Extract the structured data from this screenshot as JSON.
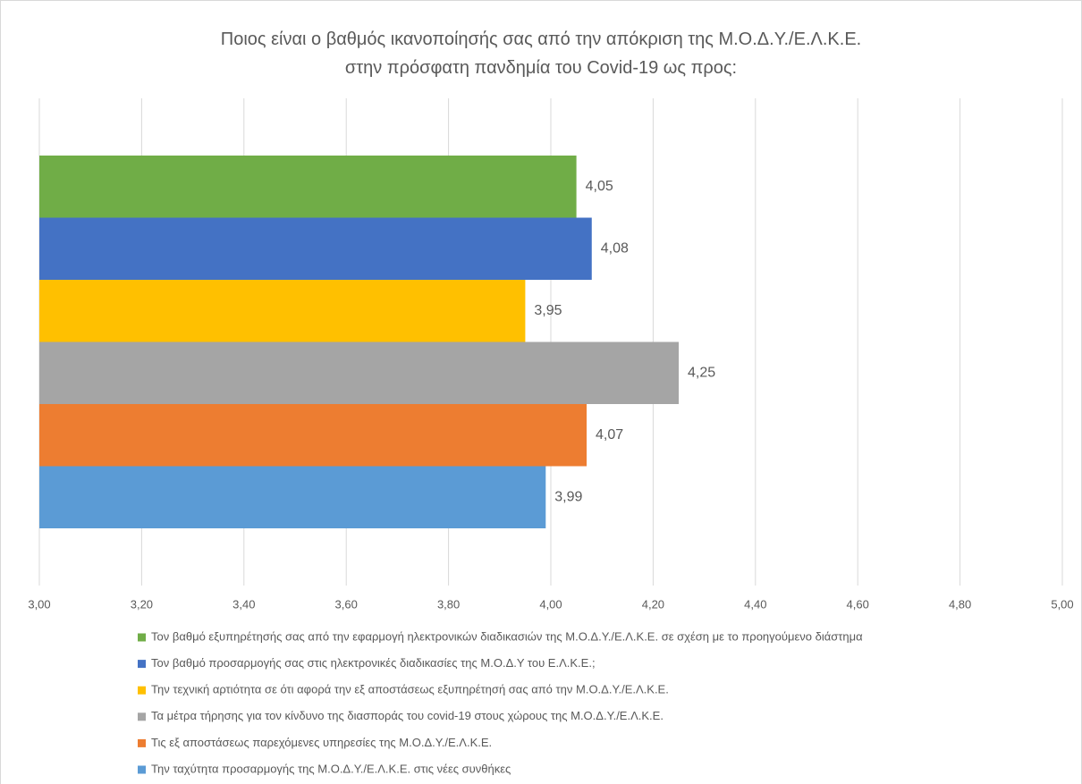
{
  "chart_data": {
    "type": "bar",
    "orientation": "horizontal",
    "title": "Ποιος είναι ο βαθμός ικανοποίησής σας από την απόκριση της Μ.Ο.Δ.Υ./Ε.Λ.Κ.Ε.  στην πρόσφατη πανδημία του Covid-19 ως προς:",
    "series": [
      {
        "name": "Τον βαθμό εξυπηρέτησής σας από την εφαρμογή ηλεκτρονικών διαδικασιών της Μ.Ο.Δ.Υ./Ε.Λ.Κ.Ε. σε σχέση με το προηγούμενο διάστημα",
        "color": "#70ad47",
        "values": [
          4.05
        ],
        "value_labels": [
          "4,05"
        ]
      },
      {
        "name": "Τον βαθμό προσαρμογής σας στις ηλεκτρονικές διαδικασίες της Μ.Ο.Δ.Υ του Ε.Λ.Κ.Ε.;",
        "color": "#4472c4",
        "values": [
          4.08
        ],
        "value_labels": [
          "4,08"
        ]
      },
      {
        "name": "Την τεχνική αρτιότητα σε ότι αφορά την εξ αποστάσεως εξυπηρέτησή σας από την Μ.Ο.Δ.Υ./Ε.Λ.Κ.Ε.",
        "color": "#ffc000",
        "values": [
          3.95
        ],
        "value_labels": [
          "3,95"
        ]
      },
      {
        "name": "Τα μέτρα τήρησης για τον κίνδυνο της διασποράς του covid-19 στους χώρους της Μ.Ο.Δ.Υ./Ε.Λ.Κ.Ε.",
        "color": "#a5a5a5",
        "values": [
          4.25
        ],
        "value_labels": [
          "4,25"
        ]
      },
      {
        "name": "Τις εξ αποστάσεως παρεχόμενες υπηρεσίες της Μ.Ο.Δ.Υ./Ε.Λ.Κ.Ε.",
        "color": "#ed7d31",
        "values": [
          4.07
        ],
        "value_labels": [
          "4,07"
        ]
      },
      {
        "name": "Την ταχύτητα προσαρμογής της Μ.Ο.Δ.Υ./Ε.Λ.Κ.Ε. στις νέες συνθήκες",
        "color": "#5b9bd5",
        "values": [
          3.99
        ],
        "value_labels": [
          "3,99"
        ]
      }
    ],
    "xlim": [
      3,
      5
    ],
    "xticks": [
      {
        "value": 3,
        "label": "3,00"
      },
      {
        "value": 3.2,
        "label": "3,20"
      },
      {
        "value": 3.4,
        "label": "3,40"
      },
      {
        "value": 3.6,
        "label": "3,60"
      },
      {
        "value": 3.8,
        "label": "3,80"
      },
      {
        "value": 4,
        "label": "4,00"
      },
      {
        "value": 4.2,
        "label": "4,20"
      },
      {
        "value": 4.4,
        "label": "4,40"
      },
      {
        "value": 4.6,
        "label": "4,60"
      },
      {
        "value": 4.8,
        "label": "4,80"
      },
      {
        "value": 5,
        "label": "5,00"
      }
    ],
    "grid": true,
    "legend": "bottom"
  }
}
